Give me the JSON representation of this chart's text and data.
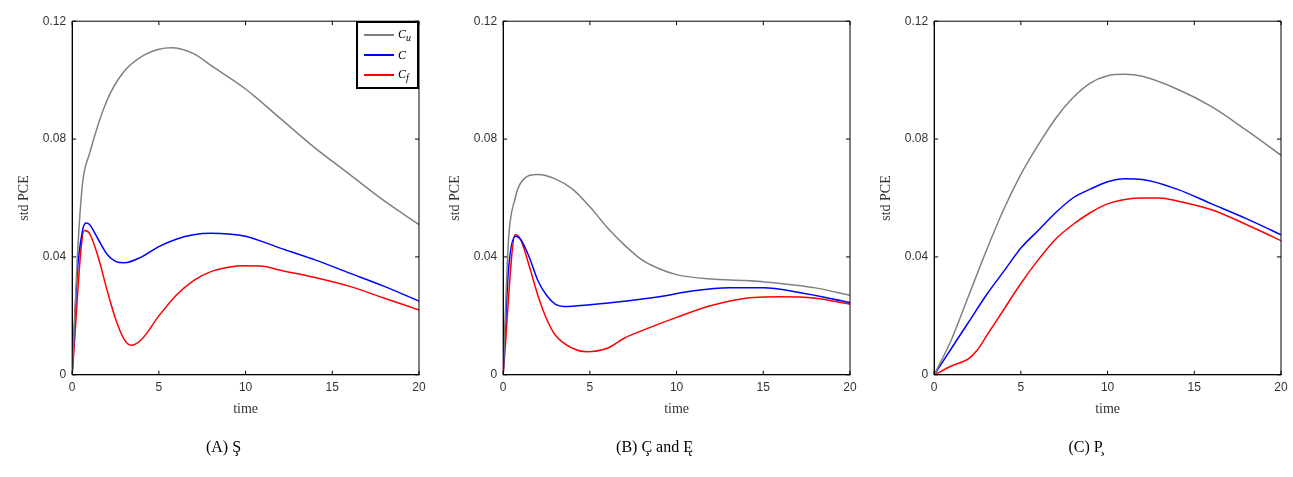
{
  "chart_data": [
    {
      "type": "line",
      "title": "(A) Ş",
      "xlabel": "time",
      "ylabel": "std PCE",
      "xlim": [
        0,
        20
      ],
      "xticks": [
        0,
        5,
        10,
        15,
        20
      ],
      "ylim": [
        0,
        0.12
      ],
      "yticks": [
        0,
        0.04,
        0.08,
        0.12
      ],
      "legend": "top right",
      "series": [
        {
          "name": "C$_{u}$",
          "color": "#808080",
          "x": [
            0,
            0.3,
            0.6,
            1,
            2,
            3,
            4,
            5,
            5.7,
            7,
            8,
            10,
            12,
            14,
            16,
            18,
            20
          ],
          "values": [
            0,
            0.04,
            0.065,
            0.075,
            0.093,
            0.103,
            0.108,
            0.1105,
            0.111,
            0.109,
            0.105,
            0.097,
            0.087,
            0.077,
            0.068,
            0.059,
            0.051
          ]
        },
        {
          "name": "C",
          "color": "#0000ff",
          "x": [
            0,
            0.3,
            0.6,
            0.8,
            1,
            1.5,
            2,
            2.5,
            3,
            4,
            5,
            6,
            7,
            8,
            9,
            10,
            12,
            14,
            16,
            18,
            20
          ],
          "values": [
            0,
            0.035,
            0.049,
            0.0515,
            0.051,
            0.046,
            0.041,
            0.0385,
            0.038,
            0.04,
            0.0435,
            0.046,
            0.0475,
            0.048,
            0.0478,
            0.047,
            0.043,
            0.039,
            0.0345,
            0.03,
            0.025
          ]
        },
        {
          "name": "C$_{f}$",
          "color": "#ff0000",
          "x": [
            0,
            0.3,
            0.7,
            1,
            1.5,
            2,
            2.5,
            3,
            3.4,
            4,
            5,
            6,
            7,
            8,
            9,
            10,
            11,
            12,
            14,
            16,
            18,
            20
          ],
          "values": [
            0,
            null,
            0.049,
            0.048,
            0.04,
            0.029,
            0.019,
            0.012,
            0.01,
            0.012,
            0.02,
            0.027,
            0.032,
            0.035,
            0.0365,
            0.037,
            0.0368,
            0.0355,
            0.033,
            0.03,
            0.026,
            0.022
          ]
        }
      ]
    },
    {
      "type": "line",
      "title": "(B) Ç and Ę",
      "xlabel": "time",
      "ylabel": "std PCE",
      "xlim": [
        0,
        20
      ],
      "xticks": [
        0,
        5,
        10,
        15,
        20
      ],
      "ylim": [
        0,
        0.12
      ],
      "yticks": [
        0,
        0.04,
        0.08,
        0.12
      ],
      "series": [
        {
          "color": "#808080",
          "x": [
            0,
            0.3,
            0.7,
            1,
            2,
            3,
            4,
            5,
            6,
            7,
            8,
            9,
            10,
            12,
            14,
            16,
            18,
            20
          ],
          "values": [
            0,
            0.045,
            0.06,
            0.065,
            0.068,
            0.0665,
            0.063,
            0.057,
            0.05,
            0.044,
            0.039,
            0.036,
            0.034,
            0.0325,
            0.032,
            0.031,
            0.0295,
            0.027
          ]
        },
        {
          "color": "#0000ff",
          "x": [
            0,
            0.3,
            0.7,
            1,
            1.5,
            2,
            2.5,
            3,
            3.5,
            5,
            7,
            9,
            11,
            13,
            15,
            17,
            20
          ],
          "values": [
            0,
            0.035,
            0.047,
            0.046,
            0.04,
            0.032,
            0.027,
            0.024,
            0.0232,
            0.0238,
            0.025,
            0.0265,
            0.0285,
            0.0295,
            0.0295,
            0.028,
            0.0245
          ]
        },
        {
          "color": "#ff0000",
          "x": [
            0,
            0.3,
            0.7,
            1,
            1.5,
            2,
            2.5,
            3,
            4,
            4.8,
            6,
            7,
            8,
            10,
            12,
            14,
            16,
            18,
            20
          ],
          "values": [
            0,
            null,
            0.0475,
            0.046,
            0.037,
            0.027,
            0.019,
            0.0135,
            0.009,
            0.0078,
            0.009,
            0.0125,
            0.015,
            0.0195,
            0.0235,
            0.026,
            0.0265,
            0.026,
            0.024
          ]
        }
      ]
    },
    {
      "type": "line",
      "title": "(C) P̧",
      "xlabel": "time",
      "ylabel": "std PCE",
      "xlim": [
        0,
        20
      ],
      "xticks": [
        0,
        5,
        10,
        15,
        20
      ],
      "ylim": [
        0,
        0.12
      ],
      "yticks": [
        0,
        0.04,
        0.08,
        0.12
      ],
      "series": [
        {
          "color": "#808080",
          "x": [
            0,
            1,
            2,
            3,
            4,
            5,
            6,
            7,
            8,
            9,
            10,
            11,
            12,
            14,
            16,
            18,
            20
          ],
          "values": [
            0,
            0.012,
            0.027,
            0.042,
            0.056,
            0.068,
            0.078,
            0.087,
            0.094,
            0.099,
            0.1015,
            0.102,
            0.1013,
            0.097,
            0.091,
            0.083,
            0.0745
          ]
        },
        {
          "color": "#0000ff",
          "x": [
            0,
            1,
            2,
            3,
            4,
            5,
            6,
            7,
            8,
            9,
            10,
            11,
            12,
            14,
            16,
            18,
            20
          ],
          "values": [
            0,
            0.009,
            0.018,
            0.027,
            0.035,
            0.043,
            0.049,
            0.055,
            0.06,
            0.063,
            0.0655,
            0.0665,
            0.0663,
            0.063,
            0.058,
            0.053,
            0.0475
          ]
        },
        {
          "color": "#ff0000",
          "x": [
            0,
            1,
            2,
            2.5,
            3,
            4,
            5,
            6,
            7,
            8,
            9,
            10,
            11,
            12,
            13,
            14,
            16,
            18,
            20
          ],
          "values": [
            0,
            0.003,
            0.0055,
            0.0085,
            0.013,
            0.022,
            0.031,
            0.039,
            0.046,
            0.051,
            0.055,
            0.058,
            0.0595,
            0.06,
            0.06,
            0.059,
            0.056,
            0.051,
            0.0455
          ]
        }
      ]
    }
  ]
}
